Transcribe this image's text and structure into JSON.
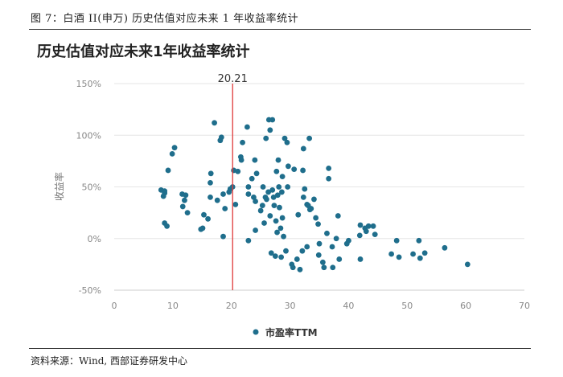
{
  "figure_caption": "图 7：白酒 II(申万)  历史估值对应未来 1 年收益率统计",
  "source_note": "资料来源：Wind, 西部证券研发中心",
  "colors": {
    "point": "#1f6e8c",
    "ref_line": "#e03a3a",
    "grid": "#e6e6e6",
    "axis": "#cccccc"
  },
  "chart_data": {
    "type": "scatter",
    "title": "历史估值对应未来1年收益率统计",
    "xlabel": "",
    "ylabel": "收益率",
    "xlim": [
      0,
      70
    ],
    "ylim": [
      -0.5,
      1.5
    ],
    "x_ticks": [
      "0",
      "10",
      "20",
      "30",
      "40",
      "50",
      "60",
      "70"
    ],
    "y_ticks": [
      "150%",
      "100%",
      "50%",
      "0%",
      "-50%"
    ],
    "grid": "horizontal",
    "legend": {
      "position": "bottom-center",
      "entries": [
        "市盈率TTM"
      ]
    },
    "reference_line": {
      "x": 20.21,
      "label": "20.21"
    },
    "series": [
      {
        "name": "市盈率TTM",
        "points": [
          [
            8.0,
            0.47
          ],
          [
            8.4,
            0.41
          ],
          [
            8.6,
            0.46
          ],
          [
            8.6,
            0.44
          ],
          [
            8.6,
            0.15
          ],
          [
            9.0,
            0.12
          ],
          [
            9.2,
            0.66
          ],
          [
            9.9,
            0.82
          ],
          [
            10.3,
            0.88
          ],
          [
            11.6,
            0.43
          ],
          [
            11.7,
            0.31
          ],
          [
            12.0,
            0.37
          ],
          [
            12.2,
            0.42
          ],
          [
            12.5,
            0.25
          ],
          [
            14.8,
            0.09
          ],
          [
            15.1,
            0.1
          ],
          [
            15.3,
            0.23
          ],
          [
            16.0,
            0.19
          ],
          [
            16.4,
            0.54
          ],
          [
            16.4,
            0.4
          ],
          [
            16.5,
            0.63
          ],
          [
            17.1,
            1.12
          ],
          [
            17.6,
            0.37
          ],
          [
            18.1,
            0.95
          ],
          [
            18.3,
            0.98
          ],
          [
            18.6,
            0.02
          ],
          [
            18.6,
            0.43
          ],
          [
            18.9,
            0.29
          ],
          [
            19.6,
            0.45
          ],
          [
            19.8,
            0.48
          ],
          [
            20.2,
            0.5
          ],
          [
            20.4,
            0.66
          ],
          [
            20.7,
            0.33
          ],
          [
            21.1,
            0.65
          ],
          [
            21.6,
            0.79
          ],
          [
            21.7,
            0.76
          ],
          [
            21.9,
            0.93
          ],
          [
            22.7,
            1.08
          ],
          [
            22.9,
            0.5
          ],
          [
            22.9,
            -0.02
          ],
          [
            22.9,
            0.43
          ],
          [
            23.5,
            0.58
          ],
          [
            23.8,
            0.4
          ],
          [
            24.0,
            0.76
          ],
          [
            24.1,
            0.08
          ],
          [
            24.1,
            0.36
          ],
          [
            24.3,
            0.63
          ],
          [
            25.0,
            0.27
          ],
          [
            25.3,
            0.32
          ],
          [
            25.4,
            0.5
          ],
          [
            25.6,
            0.15
          ],
          [
            25.8,
            0.4
          ],
          [
            25.9,
            0.97
          ],
          [
            26.0,
            0.38
          ],
          [
            26.3,
            0.45
          ],
          [
            26.4,
            1.15
          ],
          [
            26.6,
            1.05
          ],
          [
            26.6,
            0.22
          ],
          [
            26.8,
            -0.14
          ],
          [
            27.0,
            1.15
          ],
          [
            27.0,
            0.47
          ],
          [
            27.2,
            0.4
          ],
          [
            27.3,
            0.32
          ],
          [
            27.5,
            -0.17
          ],
          [
            27.6,
            0.17
          ],
          [
            27.7,
            0.65
          ],
          [
            27.8,
            0.06
          ],
          [
            27.9,
            0.42
          ],
          [
            28.0,
            0.76
          ],
          [
            28.1,
            0.5
          ],
          [
            28.2,
            0.3
          ],
          [
            28.4,
            0.1
          ],
          [
            28.5,
            -0.18
          ],
          [
            28.6,
            0.45
          ],
          [
            28.7,
            0.2
          ],
          [
            28.7,
            0.6
          ],
          [
            28.9,
            0.02
          ],
          [
            29.1,
            0.97
          ],
          [
            29.3,
            -0.12
          ],
          [
            29.5,
            0.93
          ],
          [
            29.6,
            0.5
          ],
          [
            29.7,
            0.7
          ],
          [
            30.3,
            -0.25
          ],
          [
            30.5,
            -0.28
          ],
          [
            30.7,
            0.67
          ],
          [
            31.2,
            -0.2
          ],
          [
            31.4,
            0.23
          ],
          [
            31.7,
            -0.3
          ],
          [
            32.1,
            -0.12
          ],
          [
            32.2,
            0.66
          ],
          [
            32.3,
            0.87
          ],
          [
            32.3,
            0.4
          ],
          [
            32.5,
            0.48
          ],
          [
            32.9,
            -0.08
          ],
          [
            32.9,
            0.33
          ],
          [
            33.1,
            0.32
          ],
          [
            33.3,
            0.97
          ],
          [
            33.4,
            0.28
          ],
          [
            33.6,
            0.29
          ],
          [
            34.1,
            0.38
          ],
          [
            34.4,
            0.2
          ],
          [
            34.8,
            0.14
          ],
          [
            34.9,
            -0.16
          ],
          [
            35.0,
            -0.05
          ],
          [
            35.6,
            -0.23
          ],
          [
            35.8,
            -0.28
          ],
          [
            36.3,
            0.05
          ],
          [
            36.6,
            0.58
          ],
          [
            36.6,
            0.68
          ],
          [
            37.2,
            -0.08
          ],
          [
            37.3,
            -0.28
          ],
          [
            37.9,
            0.0
          ],
          [
            38.2,
            0.22
          ],
          [
            38.4,
            -0.2
          ],
          [
            39.7,
            -0.05
          ],
          [
            40.0,
            -0.02
          ],
          [
            41.9,
            0.03
          ],
          [
            42.0,
            -0.2
          ],
          [
            42.0,
            0.13
          ],
          [
            42.8,
            0.1
          ],
          [
            43.0,
            0.07
          ],
          [
            43.4,
            0.12
          ],
          [
            44.2,
            0.12
          ],
          [
            44.5,
            0.04
          ],
          [
            47.3,
            -0.15
          ],
          [
            48.2,
            -0.02
          ],
          [
            48.6,
            -0.18
          ],
          [
            51.0,
            -0.15
          ],
          [
            52.0,
            -0.02
          ],
          [
            52.2,
            -0.19
          ],
          [
            53.0,
            -0.14
          ],
          [
            56.4,
            -0.09
          ],
          [
            60.3,
            -0.25
          ]
        ]
      }
    ]
  }
}
